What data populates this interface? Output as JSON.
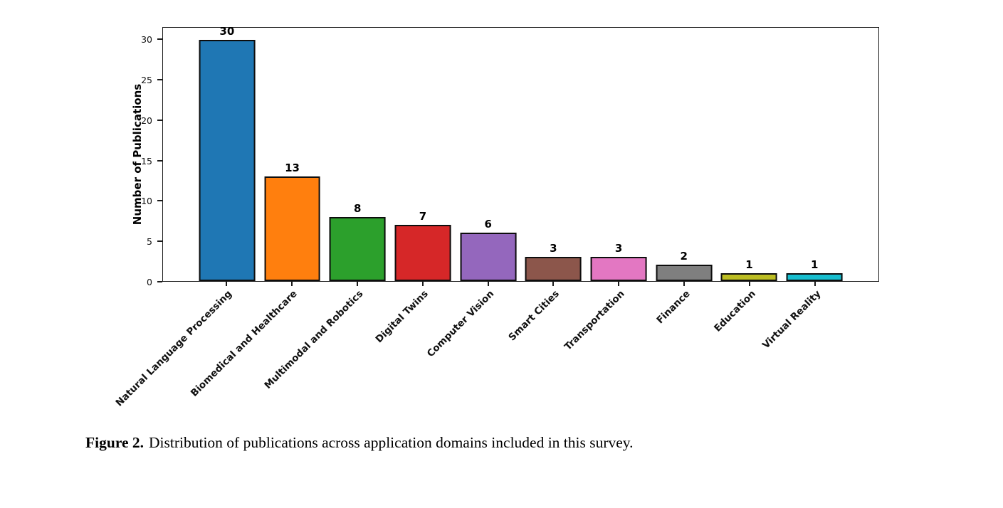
{
  "chart_data": {
    "type": "bar",
    "categories": [
      "Natural Language Processing",
      "Biomedical and Healthcare",
      "Multimodal and Robotics",
      "Digital Twins",
      "Computer Vision",
      "Smart Cities",
      "Transportation",
      "Finance",
      "Education",
      "Virtual Reality"
    ],
    "values": [
      30,
      13,
      8,
      7,
      6,
      3,
      3,
      2,
      1,
      1
    ],
    "bar_colors": [
      "#1f77b4",
      "#ff7f0e",
      "#2ca02c",
      "#d62728",
      "#9467bd",
      "#8c564b",
      "#e377c2",
      "#7f7f7f",
      "#bcbd22",
      "#17becf"
    ],
    "bar_edge_color": "#0d0d0d",
    "title": "",
    "xlabel": "",
    "ylabel": "Number of Publications",
    "ylim": [
      0,
      31.5
    ],
    "yticks": [
      0,
      5,
      10,
      15,
      20,
      25,
      30
    ],
    "value_labels": true,
    "grid": false,
    "legend": false,
    "x_tick_rotation_deg": 45
  },
  "caption": {
    "label": "Figure 2.",
    "text": "Distribution of publications across application domains included in this survey."
  }
}
